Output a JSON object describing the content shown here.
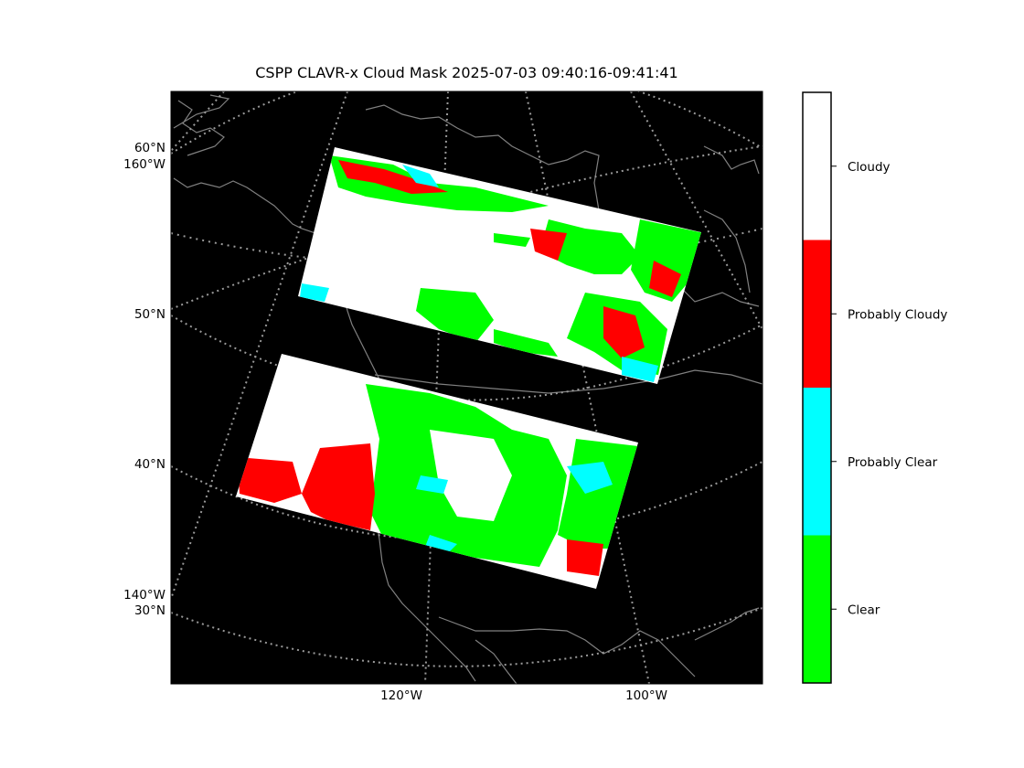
{
  "title": "CSPP CLAVR-x Cloud Mask 2025-07-03 09:40:16-09:41:41",
  "map": {
    "lat_labels": [
      "60°N",
      "50°N",
      "40°N",
      "30°N"
    ],
    "lon_labels_left": [
      "160°W",
      "140°W"
    ],
    "lon_labels_bottom": [
      "120°W",
      "100°W"
    ]
  },
  "legend": {
    "categories": [
      {
        "label": "Cloudy",
        "color": "#ffffff"
      },
      {
        "label": "Probably Cloudy",
        "color": "#ff0000"
      },
      {
        "label": "Probably Clear",
        "color": "#00ffff"
      },
      {
        "label": "Clear",
        "color": "#00ff00"
      }
    ]
  },
  "colors": {
    "background": "#000000",
    "coast": "#808080",
    "grid": "#9a9a9a"
  }
}
